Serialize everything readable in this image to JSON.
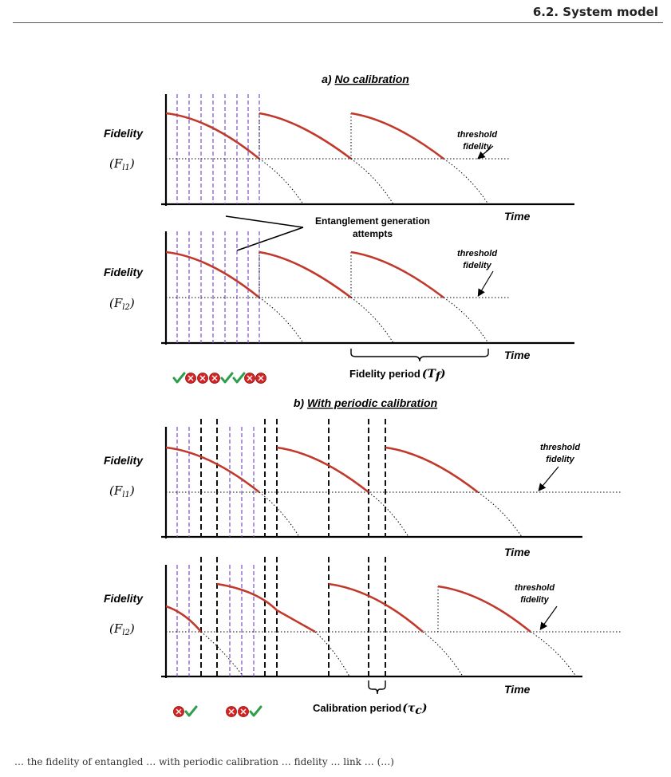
{
  "header": {
    "section": "6.2. System model"
  },
  "panel_a": {
    "title_prefix": "a)",
    "title_main": "No calibration",
    "top": {
      "ylabel": "Fidelity",
      "ysymbol": "(F",
      "ysub": "l1",
      "xlabel": "Time",
      "threshold_line1": "threshold",
      "threshold_line2": "fidelity"
    },
    "bottom": {
      "ylabel": "Fidelity",
      "ysymbol": "(F",
      "ysub": "l2",
      "xlabel": "Time",
      "threshold_line1": "threshold",
      "threshold_line2": "fidelity"
    },
    "attempts_label_line1": "Entanglement generation",
    "attempts_label_line2": "attempts",
    "period_label": "Fidelity period",
    "period_symbol": "(T",
    "period_sub": "f",
    "attempt_outcomes": [
      "success",
      "fail",
      "fail",
      "fail",
      "success",
      "success",
      "fail",
      "fail"
    ]
  },
  "panel_b": {
    "title_prefix": "b)",
    "title_main": "With periodic calibration",
    "top": {
      "ylabel": "Fidelity",
      "ysymbol": "(F",
      "ysub": "l1",
      "xlabel": "Time",
      "threshold_line1": "threshold",
      "threshold_line2": "fidelity"
    },
    "bottom": {
      "ylabel": "Fidelity",
      "ysymbol": "(F",
      "ysub": "l2",
      "xlabel": "Time",
      "threshold_line1": "threshold",
      "threshold_line2": "fidelity"
    },
    "period_label": "Calibration period",
    "period_symbol": "(τ",
    "period_sub": "c",
    "attempt_outcomes_group1": [
      "fail",
      "success"
    ],
    "attempt_outcomes_group2": [
      "fail",
      "fail",
      "success"
    ]
  },
  "colors": {
    "curve": "#c0392b",
    "attempt_line": "#7a4fc9",
    "success": "#2e9e4a",
    "fail": "#d42424"
  },
  "footer": {
    "text": "… the fidelity of entangled … with periodic calibration … fidelity … link … (…)"
  }
}
